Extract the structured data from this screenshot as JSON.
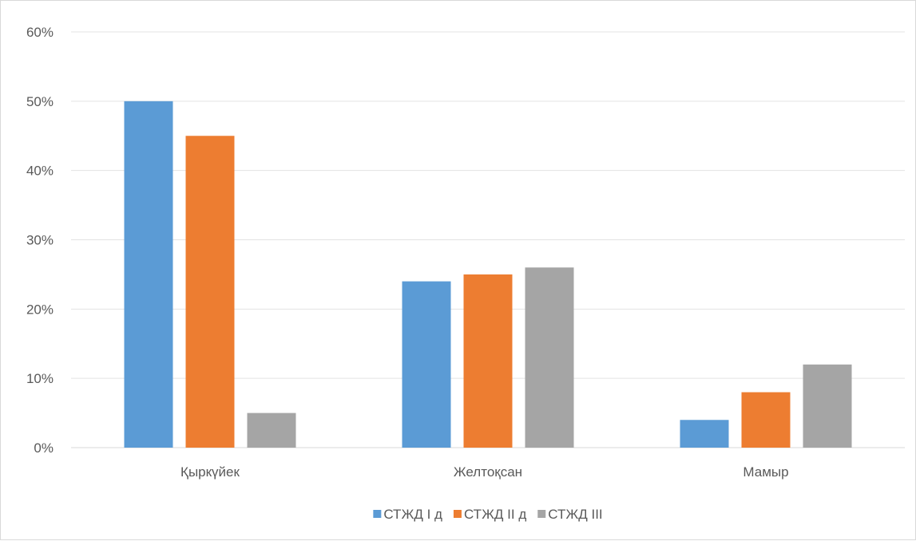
{
  "chart_data": {
    "type": "bar",
    "title": "",
    "xlabel": "",
    "ylabel": "",
    "categories": [
      "Қыркүйек",
      "Желтоқсан",
      "Мамыр"
    ],
    "series": [
      {
        "name": "СТЖД I д",
        "color": "#5b9bd5",
        "values": [
          50,
          24,
          4
        ]
      },
      {
        "name": "СТЖД II д",
        "color": "#ed7d31",
        "values": [
          45,
          25,
          8
        ]
      },
      {
        "name": "СТЖД III",
        "color": "#a5a5a5",
        "values": [
          5,
          26,
          12
        ]
      }
    ],
    "ylim": [
      0,
      60
    ],
    "yticks": [
      0,
      10,
      20,
      30,
      40,
      50,
      60
    ],
    "ytick_labels": [
      "0%",
      "10%",
      "20%",
      "30%",
      "40%",
      "50%",
      "60%"
    ],
    "y_unit": "percent",
    "grid": true,
    "legend_position": "bottom"
  }
}
